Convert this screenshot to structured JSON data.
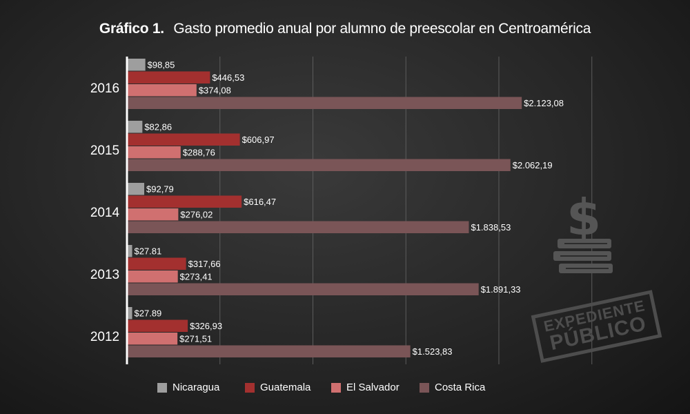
{
  "header": {
    "label": "Gráfico 1.",
    "title": "Gasto promedio anual por alumno de preescolar en Centroamérica"
  },
  "watermark": {
    "line1": "EXPEDIENTE",
    "line2": "PÚBLICO"
  },
  "icons": {
    "money": "dollar-books-icon"
  },
  "chart_data": {
    "type": "bar",
    "orientation": "horizontal",
    "categories": [
      "2016",
      "2015",
      "2014",
      "2013",
      "2012"
    ],
    "series": [
      {
        "name": "Nicaragua",
        "color": "#9e9e9e",
        "values": [
          98.85,
          82.86,
          92.79,
          27.81,
          27.89
        ],
        "labels": [
          "$98,85",
          "$82,86",
          "$92,79",
          "$27.81",
          "$27.89"
        ]
      },
      {
        "name": "Guatemala",
        "color": "#a3302f",
        "values": [
          446.53,
          606.97,
          616.47,
          317.66,
          326.93
        ],
        "labels": [
          "$446,53",
          "$606,97",
          "$616,47",
          "$317,66",
          "$326,93"
        ]
      },
      {
        "name": "El Salvador",
        "color": "#d07070",
        "values": [
          374.08,
          288.76,
          276.02,
          273.41,
          271.51
        ],
        "labels": [
          "$374,08",
          "$288,76",
          "$276,02",
          "$273,41",
          "$271,51"
        ]
      },
      {
        "name": "Costa Rica",
        "color": "#7a5557",
        "values": [
          2123.08,
          2062.19,
          1838.53,
          1891.33,
          1523.83
        ],
        "labels": [
          "$2.123,08",
          "$2.062,19",
          "$1.838,53",
          "$1.891,33",
          "$1.523,83"
        ]
      }
    ],
    "xlim": [
      0,
      2500
    ],
    "grid": true,
    "legend_position": "bottom",
    "xlabel": "",
    "ylabel": ""
  }
}
